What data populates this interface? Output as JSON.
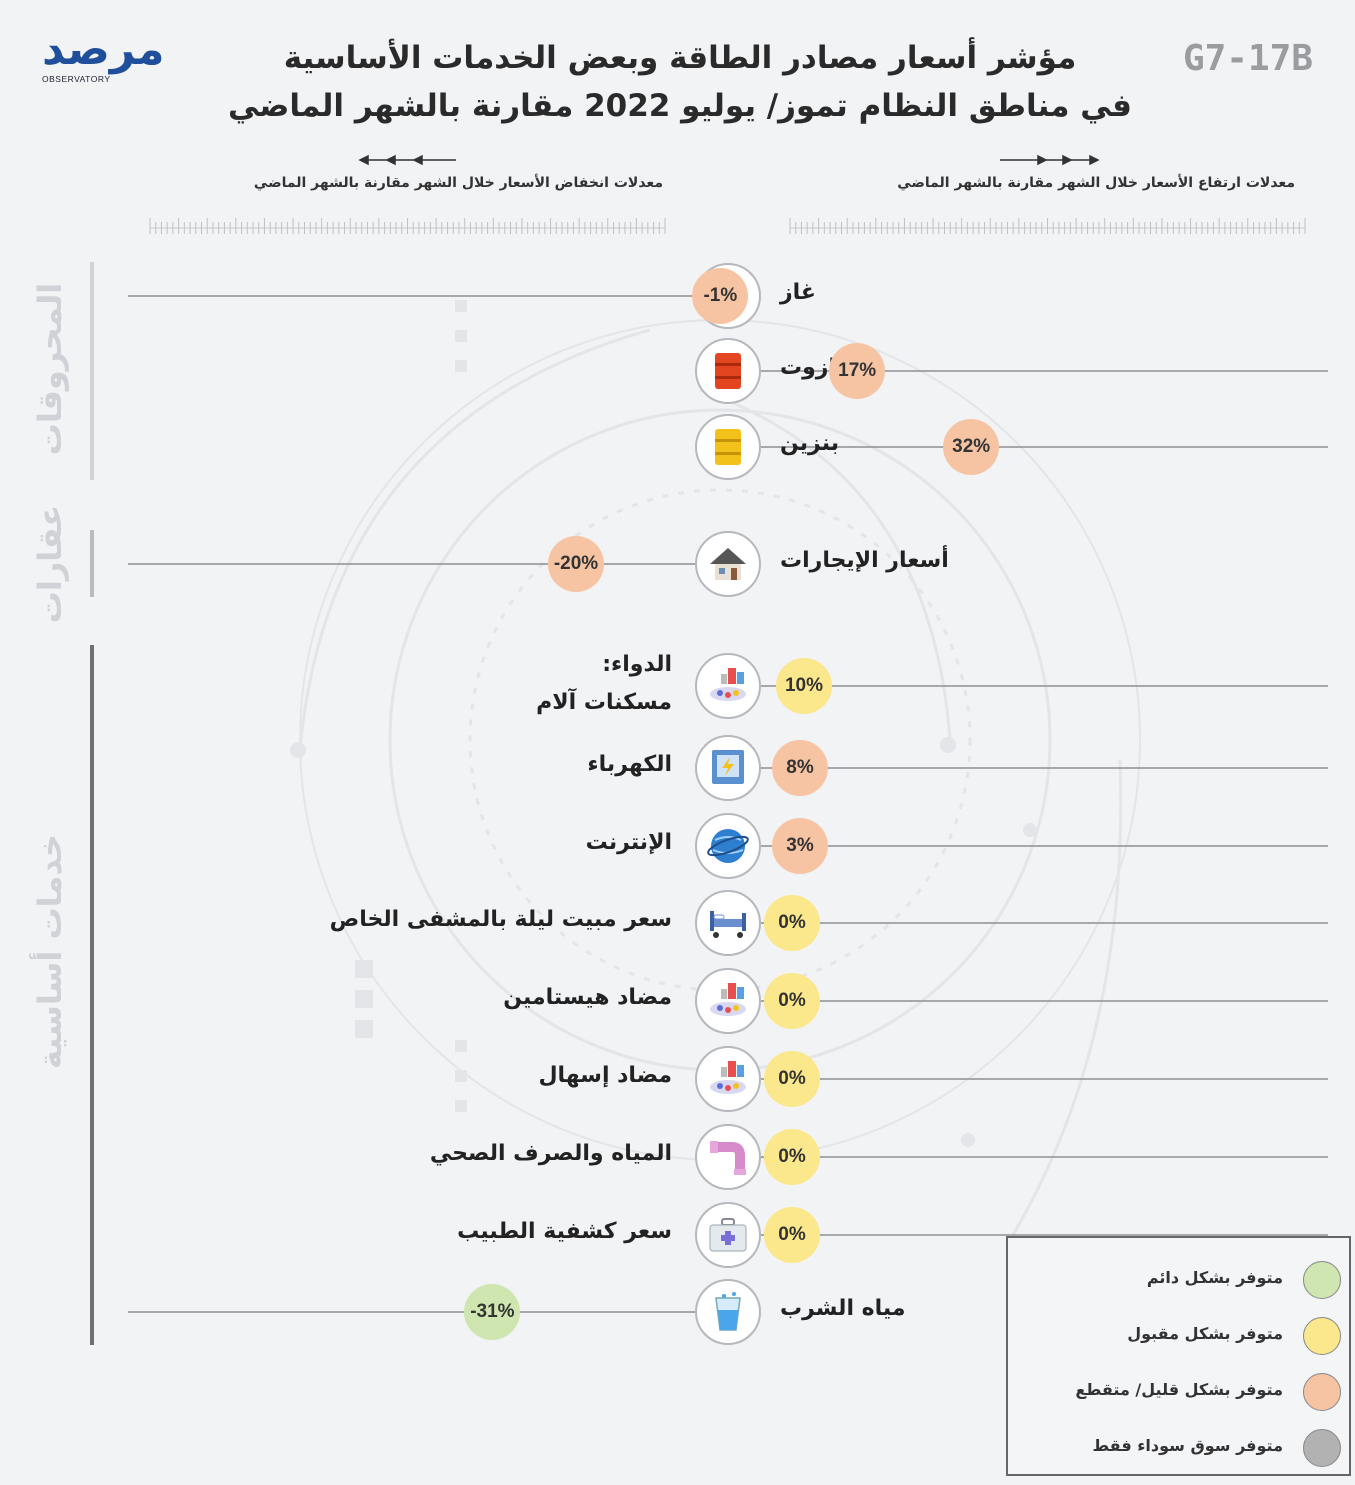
{
  "header": {
    "code": "G7-17B",
    "title_line1": "مؤشر أسعار مصادر الطاقة وبعض الخدمات الأساسية",
    "title_line2": "في مناطق النظام تموز/ يوليو 2022 مقارنة بالشهر الماضي",
    "logo_text": "مرصد",
    "logo_sub": "OBSERVATORY"
  },
  "axes": {
    "increase_label": "معدلات ارتفاع الأسعار خلال الشهر مقارنة بالشهر الماضي",
    "decrease_label": "معدلات انخفاض الأسعار خلال الشهر مقارنة بالشهر الماضي"
  },
  "categories": {
    "fuels": "المحروقات",
    "realestate": "عقارات",
    "services": "خدمات أساسية"
  },
  "legend": {
    "items": [
      {
        "label": "متوفر بشكل دائم",
        "color": "#cfe6b0"
      },
      {
        "label": "متوفر بشكل مقبول",
        "color": "#fbe78c"
      },
      {
        "label": "متوفر بشكل قليل/ متقطع",
        "color": "#f6c4a3"
      },
      {
        "label": "متوفر سوق سوداء فقط",
        "color": "#b2b2b2"
      }
    ]
  },
  "colors": {
    "green": "#cfe6b0",
    "yellow": "#fbe78c",
    "orange": "#f6c4a3",
    "gray": "#b2b2b2"
  },
  "chart_data": {
    "type": "scatter",
    "title": "مؤشر أسعار مصادر الطاقة وبعض الخدمات الأساسية في مناطق النظام تموز/ يوليو 2022 مقارنة بالشهر الماضي",
    "unit": "%",
    "xlim": [
      -100,
      100
    ],
    "items": [
      {
        "group": "fuels",
        "label": "غاز",
        "value": -1,
        "display": "-1%",
        "availability": "orange",
        "icon": "gas-cylinder-icon"
      },
      {
        "group": "fuels",
        "label": "مازوت",
        "value": 17,
        "display": "17%",
        "availability": "orange",
        "icon": "red-barrel-icon"
      },
      {
        "group": "fuels",
        "label": "بنزين",
        "value": 32,
        "display": "32%",
        "availability": "orange",
        "icon": "yellow-barrel-icon"
      },
      {
        "group": "realestate",
        "label": "أسعار الإيجارات",
        "value": -20,
        "display": "-20%",
        "availability": "orange",
        "icon": "house-icon"
      },
      {
        "group": "services",
        "label": "الدواء:",
        "label2": "مسكنات آلام",
        "value": 10,
        "display": "10%",
        "availability": "yellow",
        "icon": "medicine-icon"
      },
      {
        "group": "services",
        "label": "الكهرباء",
        "value": 8,
        "display": "8%",
        "availability": "orange",
        "icon": "electric-box-icon"
      },
      {
        "group": "services",
        "label": "الإنترنت",
        "value": 3,
        "display": "3%",
        "availability": "orange",
        "icon": "globe-icon"
      },
      {
        "group": "services",
        "label": "سعر مبيت ليلة بالمشفى الخاص",
        "value": 0,
        "display": "0%",
        "availability": "yellow",
        "icon": "hospital-bed-icon"
      },
      {
        "group": "services",
        "label": "مضاد هيستامين",
        "value": 0,
        "display": "0%",
        "availability": "yellow",
        "icon": "medicine-icon"
      },
      {
        "group": "services",
        "label": "مضاد إسهال",
        "value": 0,
        "display": "0%",
        "availability": "yellow",
        "icon": "medicine-icon"
      },
      {
        "group": "services",
        "label": "المياه والصرف الصحي",
        "value": 0,
        "display": "0%",
        "availability": "yellow",
        "icon": "pipe-icon"
      },
      {
        "group": "services",
        "label": "سعر كشفية الطبيب",
        "value": 0,
        "display": "0%",
        "availability": "yellow",
        "icon": "first-aid-icon"
      },
      {
        "group": "services",
        "label": "مياه الشرب",
        "value": -31,
        "display": "-31%",
        "availability": "green",
        "icon": "water-glass-icon"
      }
    ]
  }
}
